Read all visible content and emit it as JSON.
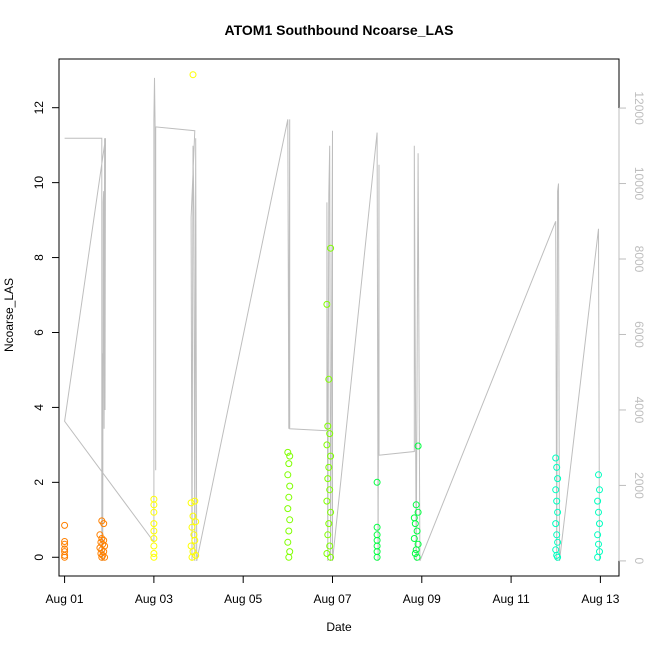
{
  "chart_data": {
    "type": "scatter",
    "title": "ATOM1 Southbound Ncoarse_LAS",
    "xlabel": "Date",
    "ylabel": "Ncoarse_LAS",
    "x_range": [
      "2024-07-31T21:00",
      "2024-08-13T10:00"
    ],
    "ylim": [
      -0.5,
      13.3
    ],
    "ylim_right": [
      -400,
      13300
    ],
    "x_ticks": [
      {
        "date": "2024-08-01",
        "label": "Aug 01"
      },
      {
        "date": "2024-08-03",
        "label": "Aug 03"
      },
      {
        "date": "2024-08-05",
        "label": "Aug 05"
      },
      {
        "date": "2024-08-07",
        "label": "Aug 07"
      },
      {
        "date": "2024-08-09",
        "label": "Aug 09"
      },
      {
        "date": "2024-08-11",
        "label": "Aug 11"
      },
      {
        "date": "2024-08-13",
        "label": "Aug 13"
      }
    ],
    "y_ticks": [
      {
        "value": 0,
        "label": "0"
      },
      {
        "value": 2,
        "label": "2"
      },
      {
        "value": 4,
        "label": "4"
      },
      {
        "value": 6,
        "label": "6"
      },
      {
        "value": 8,
        "label": "8"
      },
      {
        "value": 10,
        "label": "10"
      },
      {
        "value": 12,
        "label": "12"
      }
    ],
    "y_ticks_right": [
      {
        "value": 0,
        "label": "0"
      },
      {
        "value": 2000,
        "label": "2000"
      },
      {
        "value": 4000,
        "label": "4000"
      },
      {
        "value": 6000,
        "label": "6000"
      },
      {
        "value": 8000,
        "label": "8000"
      },
      {
        "value": 10000,
        "label": "10000"
      },
      {
        "value": 12000,
        "label": "12000"
      }
    ],
    "grid": false,
    "right_axis_color": "#bebebe",
    "line_color": "#bebebe",
    "series": [
      {
        "color": "#ff8000",
        "points": [
          [
            "2024-08-01T00:00",
            0.85
          ],
          [
            "2024-08-01T00:00",
            0.42
          ],
          [
            "2024-08-01T00:00",
            0.35
          ],
          [
            "2024-08-01T00:00",
            0.22
          ],
          [
            "2024-08-01T00:00",
            0.15
          ],
          [
            "2024-08-01T00:00",
            0.05
          ],
          [
            "2024-08-01T00:00",
            0.0
          ],
          [
            "2024-08-01T20:00",
            0.97
          ],
          [
            "2024-08-01T21:00",
            0.9
          ],
          [
            "2024-08-01T19:00",
            0.6
          ],
          [
            "2024-08-01T20:00",
            0.5
          ],
          [
            "2024-08-01T21:00",
            0.45
          ],
          [
            "2024-08-01T19:30",
            0.4
          ],
          [
            "2024-08-01T20:30",
            0.35
          ],
          [
            "2024-08-01T21:30",
            0.3
          ],
          [
            "2024-08-01T19:00",
            0.25
          ],
          [
            "2024-08-01T20:00",
            0.2
          ],
          [
            "2024-08-01T21:00",
            0.15
          ],
          [
            "2024-08-01T19:30",
            0.1
          ],
          [
            "2024-08-01T20:30",
            0.05
          ],
          [
            "2024-08-01T21:30",
            0.0
          ],
          [
            "2024-08-01T20:00",
            0.0
          ]
        ]
      },
      {
        "color": "#ffff00",
        "points": [
          [
            "2024-08-03T00:00",
            1.55
          ],
          [
            "2024-08-03T00:00",
            1.4
          ],
          [
            "2024-08-03T00:00",
            1.2
          ],
          [
            "2024-08-03T00:00",
            0.9
          ],
          [
            "2024-08-03T00:00",
            0.7
          ],
          [
            "2024-08-03T00:00",
            0.5
          ],
          [
            "2024-08-03T00:00",
            0.3
          ],
          [
            "2024-08-03T00:00",
            0.1
          ],
          [
            "2024-08-03T00:00",
            0.0
          ],
          [
            "2024-08-03T21:00",
            12.88
          ],
          [
            "2024-08-03T22:00",
            1.5
          ],
          [
            "2024-08-03T20:00",
            1.45
          ],
          [
            "2024-08-03T21:00",
            1.1
          ],
          [
            "2024-08-03T22:30",
            0.95
          ],
          [
            "2024-08-03T20:30",
            0.8
          ],
          [
            "2024-08-03T21:30",
            0.6
          ],
          [
            "2024-08-03T22:00",
            0.45
          ],
          [
            "2024-08-03T20:00",
            0.3
          ],
          [
            "2024-08-03T21:00",
            0.15
          ],
          [
            "2024-08-03T22:30",
            0.05
          ],
          [
            "2024-08-03T20:30",
            0.0
          ]
        ]
      },
      {
        "color": "#80ff00",
        "points": [
          [
            "2024-08-06T00:00",
            2.8
          ],
          [
            "2024-08-06T01:00",
            2.7
          ],
          [
            "2024-08-06T00:30",
            2.5
          ],
          [
            "2024-08-06T00:00",
            2.2
          ],
          [
            "2024-08-06T01:00",
            1.9
          ],
          [
            "2024-08-06T00:30",
            1.6
          ],
          [
            "2024-08-06T00:00",
            1.3
          ],
          [
            "2024-08-06T01:00",
            1.0
          ],
          [
            "2024-08-06T00:30",
            0.7
          ],
          [
            "2024-08-06T00:00",
            0.4
          ],
          [
            "2024-08-06T01:00",
            0.15
          ],
          [
            "2024-08-06T00:30",
            0.0
          ],
          [
            "2024-08-06T21:00",
            6.75
          ],
          [
            "2024-08-06T23:00",
            8.25
          ],
          [
            "2024-08-06T22:00",
            4.75
          ],
          [
            "2024-08-06T21:30",
            3.5
          ],
          [
            "2024-08-06T22:30",
            3.3
          ],
          [
            "2024-08-06T21:00",
            3.0
          ],
          [
            "2024-08-06T23:00",
            2.7
          ],
          [
            "2024-08-06T22:00",
            2.4
          ],
          [
            "2024-08-06T21:30",
            2.1
          ],
          [
            "2024-08-06T22:30",
            1.8
          ],
          [
            "2024-08-06T21:00",
            1.5
          ],
          [
            "2024-08-06T23:00",
            1.2
          ],
          [
            "2024-08-06T22:00",
            0.9
          ],
          [
            "2024-08-06T21:30",
            0.6
          ],
          [
            "2024-08-06T22:30",
            0.3
          ],
          [
            "2024-08-06T21:00",
            0.1
          ],
          [
            "2024-08-06T23:00",
            0.0
          ]
        ]
      },
      {
        "color": "#00ff40",
        "points": [
          [
            "2024-08-08T00:00",
            2.0
          ],
          [
            "2024-08-08T00:00",
            0.8
          ],
          [
            "2024-08-08T00:00",
            0.6
          ],
          [
            "2024-08-08T00:00",
            0.45
          ],
          [
            "2024-08-08T00:00",
            0.3
          ],
          [
            "2024-08-08T00:00",
            0.15
          ],
          [
            "2024-08-08T00:00",
            0.0
          ],
          [
            "2024-08-08T20:00",
            1.05
          ],
          [
            "2024-08-08T22:00",
            2.97
          ],
          [
            "2024-08-08T21:00",
            1.4
          ],
          [
            "2024-08-08T22:00",
            1.2
          ],
          [
            "2024-08-08T20:30",
            0.9
          ],
          [
            "2024-08-08T21:30",
            0.7
          ],
          [
            "2024-08-08T20:00",
            0.5
          ],
          [
            "2024-08-08T22:00",
            0.35
          ],
          [
            "2024-08-08T21:00",
            0.2
          ],
          [
            "2024-08-08T20:30",
            0.1
          ],
          [
            "2024-08-08T21:30",
            0.0
          ]
        ]
      },
      {
        "color": "#00ffc0",
        "points": [
          [
            "2024-08-12T00:00",
            2.65
          ],
          [
            "2024-08-12T00:30",
            2.4
          ],
          [
            "2024-08-12T01:00",
            2.1
          ],
          [
            "2024-08-12T00:00",
            1.8
          ],
          [
            "2024-08-12T00:30",
            1.5
          ],
          [
            "2024-08-12T01:00",
            1.2
          ],
          [
            "2024-08-12T00:00",
            0.9
          ],
          [
            "2024-08-12T00:30",
            0.6
          ],
          [
            "2024-08-12T01:00",
            0.4
          ],
          [
            "2024-08-12T00:00",
            0.2
          ],
          [
            "2024-08-12T00:30",
            0.05
          ],
          [
            "2024-08-12T01:00",
            0.0
          ],
          [
            "2024-08-12T23:00",
            2.2
          ],
          [
            "2024-08-12T23:30",
            1.8
          ],
          [
            "2024-08-12T22:30",
            1.5
          ],
          [
            "2024-08-12T23:00",
            1.2
          ],
          [
            "2024-08-12T23:30",
            0.9
          ],
          [
            "2024-08-12T22:30",
            0.6
          ],
          [
            "2024-08-12T23:00",
            0.35
          ],
          [
            "2024-08-12T23:30",
            0.15
          ],
          [
            "2024-08-12T22:30",
            0.0
          ]
        ]
      }
    ],
    "right_series_line": [
      [
        "2024-08-01T00:00",
        11200
      ],
      [
        "2024-08-01T20:00",
        11200
      ],
      [
        "2024-08-01T20:00",
        0
      ],
      [
        "2024-08-01T20:15",
        5500
      ],
      [
        "2024-08-01T20:30",
        0
      ],
      [
        "2024-08-01T20:45",
        9500
      ],
      [
        "2024-08-01T21:00",
        9800
      ],
      [
        "2024-08-01T21:15",
        3500
      ],
      [
        "2024-08-01T21:30",
        11200
      ],
      [
        "2024-08-01T21:45",
        4000
      ],
      [
        "2024-08-01T22:00",
        11200
      ],
      [
        "2024-08-01T00:00",
        3700
      ],
      [
        "2024-08-03T00:00",
        500
      ],
      [
        "2024-08-03T00:00",
        11700
      ],
      [
        "2024-08-03T00:20",
        12800
      ],
      [
        "2024-08-03T00:40",
        11500
      ],
      [
        "2024-08-03T01:00",
        2400
      ],
      [
        "2024-08-03T01:00",
        11500
      ],
      [
        "2024-08-03T22:00",
        11400
      ],
      [
        "2024-08-03T20:00",
        9100
      ],
      [
        "2024-08-03T20:30",
        0
      ],
      [
        "2024-08-03T21:00",
        11000
      ],
      [
        "2024-08-03T21:30",
        9300
      ],
      [
        "2024-08-03T22:00",
        0
      ],
      [
        "2024-08-03T22:30",
        11200
      ],
      [
        "2024-08-03T23:00",
        0
      ],
      [
        "2024-08-06T00:00",
        11700
      ],
      [
        "2024-08-06T00:30",
        3500
      ],
      [
        "2024-08-06T01:00",
        11700
      ],
      [
        "2024-08-06T01:00",
        3500
      ],
      [
        "2024-08-06T21:00",
        3450
      ],
      [
        "2024-08-06T21:00",
        9500
      ],
      [
        "2024-08-06T21:30",
        0
      ],
      [
        "2024-08-06T22:00",
        9700
      ],
      [
        "2024-08-06T22:30",
        11000
      ],
      [
        "2024-08-06T23:00",
        0
      ],
      [
        "2024-08-07T00:00",
        11400
      ],
      [
        "2024-08-07T00:00",
        0
      ],
      [
        "2024-08-08T00:00",
        11350
      ],
      [
        "2024-08-08T00:30",
        0
      ],
      [
        "2024-08-08T01:00",
        10500
      ],
      [
        "2024-08-08T01:00",
        2800
      ],
      [
        "2024-08-08T20:00",
        2900
      ],
      [
        "2024-08-08T20:00",
        11000
      ],
      [
        "2024-08-08T21:00",
        0
      ],
      [
        "2024-08-08T22:00",
        10800
      ],
      [
        "2024-08-08T23:00",
        0
      ],
      [
        "2024-08-12T00:00",
        9000
      ],
      [
        "2024-08-12T00:30",
        0
      ],
      [
        "2024-08-12T01:00",
        9800
      ],
      [
        "2024-08-12T01:30",
        10000
      ],
      [
        "2024-08-12T02:00",
        0
      ],
      [
        "2024-08-12T23:00",
        8800
      ],
      [
        "2024-08-12T23:30",
        0
      ]
    ]
  }
}
